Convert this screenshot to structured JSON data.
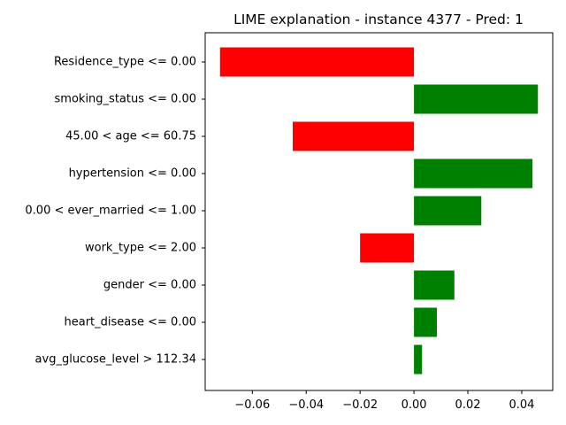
{
  "chart_data": {
    "type": "bar",
    "orientation": "horizontal",
    "title": "LIME explanation - instance 4377 - Pred: 1",
    "xlabel": "",
    "ylabel": "",
    "xlim": [
      -0.0775,
      0.0515
    ],
    "xticks": [
      -0.06,
      -0.04,
      -0.02,
      0.0,
      0.02,
      0.04
    ],
    "xtick_labels": [
      "−0.06",
      "−0.04",
      "−0.02",
      "0.00",
      "0.02",
      "0.04"
    ],
    "categories": [
      "Residence_type <= 0.00",
      "smoking_status <= 0.00",
      "45.00 < age <= 60.75",
      "hypertension <= 0.00",
      "0.00 < ever_married <= 1.00",
      "work_type <= 2.00",
      "gender <= 0.00",
      "heart_disease <= 0.00",
      "avg_glucose_level > 112.34"
    ],
    "values": [
      -0.072,
      0.046,
      -0.045,
      0.044,
      0.025,
      -0.02,
      0.015,
      0.0085,
      0.003
    ],
    "colors": {
      "positive": "#008000",
      "negative": "#ff0000"
    },
    "grid": false,
    "legend": "none"
  }
}
